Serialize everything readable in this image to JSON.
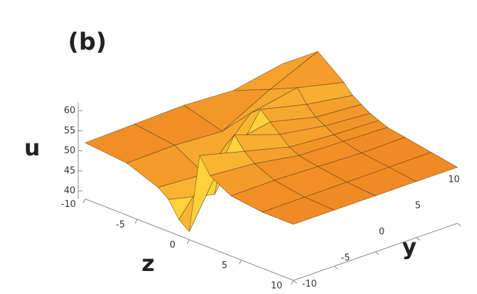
{
  "chart_data": {
    "type": "surface3d",
    "panel_label": "(b)",
    "u_label": "u",
    "z_label": "z",
    "y_label": "y",
    "color": "#f08a24",
    "highlight_color": "#ffd23c",
    "mesh_color": "#3a2a1a",
    "z": [
      -10,
      -6,
      -3,
      -2,
      -1,
      0,
      1,
      2,
      4,
      7,
      10
    ],
    "y": [
      -10,
      -5,
      0,
      5,
      10
    ],
    "u": [
      [
        52,
        51,
        48,
        46,
        42,
        40,
        60,
        56,
        53,
        52,
        52
      ],
      [
        52,
        51,
        47,
        43,
        56,
        60,
        57,
        55,
        53,
        52,
        52
      ],
      [
        52,
        50,
        58,
        60,
        58,
        56,
        54,
        53,
        52.5,
        52,
        52
      ],
      [
        51,
        56,
        60,
        57,
        55,
        54,
        53,
        52.5,
        52,
        52,
        52
      ],
      [
        53,
        61,
        57,
        55,
        54,
        53,
        52.5,
        52,
        52,
        52,
        52
      ]
    ],
    "zlim": [
      -10,
      10
    ],
    "zticks": [
      -10,
      -5,
      0,
      5,
      10
    ],
    "ylim": [
      -10,
      10
    ],
    "yticks": [
      -10,
      -5,
      0,
      5,
      10
    ],
    "ulim": [
      38,
      62
    ],
    "uticks": [
      40,
      45,
      50,
      55,
      60
    ]
  }
}
